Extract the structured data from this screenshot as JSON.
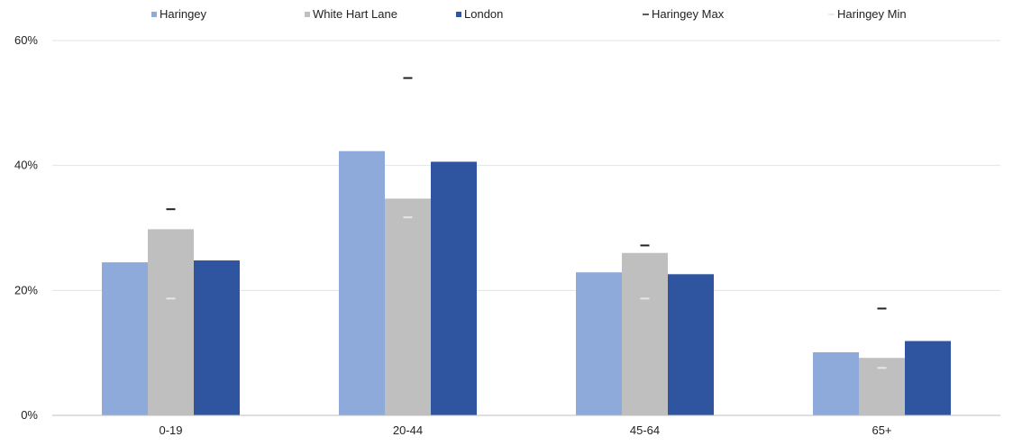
{
  "chart_data": {
    "type": "bar",
    "categories": [
      "0-19",
      "20-44",
      "45-64",
      "65+"
    ],
    "series": [
      {
        "name": "Haringey",
        "values": [
          24.5,
          42.3,
          22.9,
          10.1
        ],
        "color": "#8eaadb",
        "mark": "bar"
      },
      {
        "name": "White Hart Lane",
        "values": [
          29.8,
          34.7,
          26.0,
          9.2
        ],
        "color": "#bfbfbf",
        "mark": "bar"
      },
      {
        "name": "London",
        "values": [
          24.8,
          40.6,
          22.6,
          11.9
        ],
        "color": "#2f55a0",
        "mark": "bar"
      },
      {
        "name": "Haringey Max",
        "values": [
          33.0,
          54.0,
          27.2,
          17.1
        ],
        "color": "#222222",
        "mark": "dash"
      },
      {
        "name": "Haringey Min",
        "values": [
          18.7,
          31.7,
          18.7,
          7.6
        ],
        "color": "#e6e6e6",
        "mark": "dash"
      }
    ],
    "y_ticks": [
      "0%",
      "20%",
      "40%",
      "60%"
    ],
    "ylim": [
      0,
      60
    ],
    "grid": true,
    "legend_position": "top",
    "title": "",
    "xlabel": "",
    "ylabel": ""
  }
}
